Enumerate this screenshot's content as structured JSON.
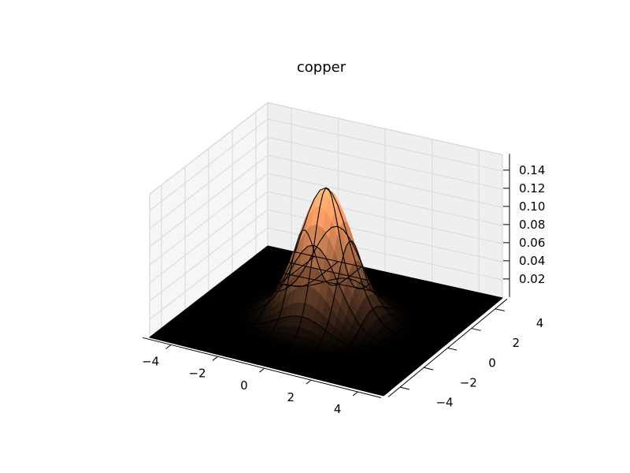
{
  "chart_data": {
    "type": "surface3d",
    "title": "copper",
    "colormap": "copper",
    "function": "bivariate gaussian peak centred at origin",
    "x": {
      "label": "",
      "range": [
        -5,
        5
      ],
      "ticks": [
        -4,
        -2,
        0,
        2,
        4
      ],
      "tick_labels": [
        "−4",
        "−2",
        "0",
        "2",
        "4"
      ]
    },
    "y": {
      "label": "",
      "range": [
        -5,
        5
      ],
      "ticks": [
        -4,
        -2,
        0,
        2,
        4
      ],
      "tick_labels": [
        "−4",
        "−2",
        "0",
        "2",
        "4"
      ]
    },
    "z": {
      "label": "",
      "range": [
        0,
        0.15
      ],
      "ticks": [
        0.02,
        0.04,
        0.06,
        0.08,
        0.1,
        0.12,
        0.14
      ],
      "tick_labels": [
        "0.02",
        "0.04",
        "0.06",
        "0.08",
        "0.10",
        "0.12",
        "0.14"
      ]
    },
    "peak": {
      "x": 0,
      "y": 0,
      "z": 0.145
    },
    "spread_sigma": 1.05,
    "grid": true,
    "wireframe_edges": "black"
  }
}
